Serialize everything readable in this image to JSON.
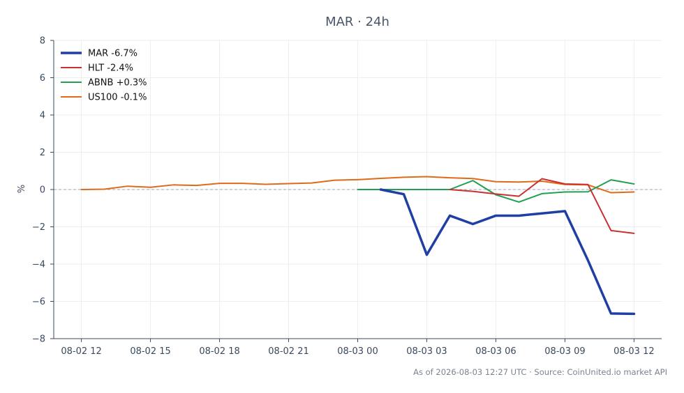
{
  "chart_data": {
    "type": "line",
    "title": "MAR · 24h",
    "ylabel": "%",
    "xlabel": "",
    "ylim": [
      -8,
      8
    ],
    "yticks": [
      -8,
      -6,
      -4,
      -2,
      0,
      2,
      4,
      6,
      8
    ],
    "ytick_labels": [
      "−8",
      "−6",
      "−4",
      "−2",
      "0",
      "2",
      "4",
      "6",
      "8"
    ],
    "xlim": [
      -1.2,
      25.2
    ],
    "xticks": [
      0,
      3,
      6,
      9,
      12,
      15,
      18,
      21,
      24
    ],
    "xtick_labels": [
      "08-02 12",
      "08-02 15",
      "08-02 18",
      "08-02 21",
      "08-03 00",
      "08-03 03",
      "08-03 06",
      "08-03 09",
      "08-03 12"
    ],
    "grid": true,
    "zero_line": true,
    "legend_position": "top-left",
    "series": [
      {
        "name": "MAR -6.7%",
        "color": "#1f3fa3",
        "width": 3.5,
        "x": [
          13,
          14,
          15,
          16,
          17,
          18,
          19,
          20,
          21,
          22,
          23,
          24
        ],
        "y": [
          0.0,
          -0.25,
          -3.5,
          -1.4,
          -1.85,
          -1.4,
          -1.4,
          -1.28,
          -1.16,
          -3.8,
          -6.65,
          -6.67
        ]
      },
      {
        "name": "HLT -2.4%",
        "color": "#c93030",
        "width": 2,
        "x": [
          16,
          17,
          18,
          19,
          20,
          21,
          22,
          23,
          24
        ],
        "y": [
          0.0,
          -0.1,
          -0.24,
          -0.36,
          0.58,
          0.3,
          0.27,
          -2.2,
          -2.35
        ]
      },
      {
        "name": "ABNB +0.3%",
        "color": "#22a050",
        "width": 2,
        "x": [
          12,
          13,
          14,
          15,
          16,
          17,
          18,
          19,
          20,
          21,
          22,
          23,
          24
        ],
        "y": [
          0.0,
          0.0,
          0.0,
          0.0,
          0.0,
          0.48,
          -0.28,
          -0.67,
          -0.22,
          -0.13,
          -0.12,
          0.52,
          0.3
        ]
      },
      {
        "name": "US100 -0.1%",
        "color": "#e06a1a",
        "width": 2,
        "x": [
          0,
          1,
          2,
          3,
          4,
          5,
          6,
          7,
          8,
          9,
          10,
          11,
          12,
          13,
          14,
          15,
          16,
          17,
          18,
          19,
          20,
          21,
          22,
          23,
          24
        ],
        "y": [
          0.0,
          0.02,
          0.18,
          0.12,
          0.25,
          0.22,
          0.33,
          0.33,
          0.28,
          0.32,
          0.35,
          0.5,
          0.53,
          0.6,
          0.66,
          0.69,
          0.63,
          0.59,
          0.42,
          0.4,
          0.45,
          0.27,
          0.25,
          -0.17,
          -0.13
        ]
      }
    ],
    "footer": "As of 2026-08-03 12:27 UTC · Source: CoinUnited.io market API"
  }
}
